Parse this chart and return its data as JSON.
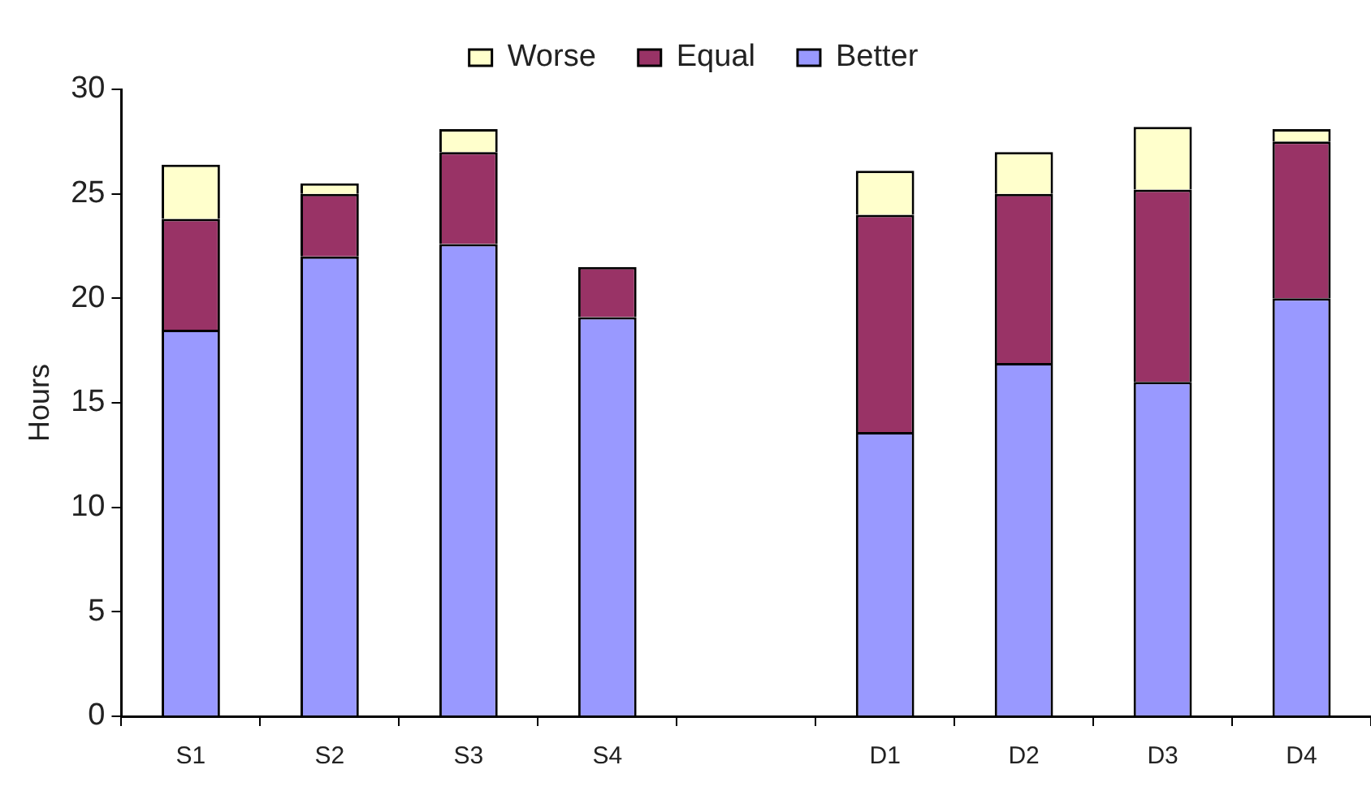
{
  "chart_data": {
    "type": "bar",
    "stacked": true,
    "ylabel": "Hours",
    "categories": [
      "S1",
      "S2",
      "S3",
      "S4",
      null,
      "D1",
      "D2",
      "D3",
      "D4"
    ],
    "series": [
      {
        "name": "Better",
        "color": "#9999ff",
        "values": [
          18.5,
          22.0,
          22.6,
          19.1,
          null,
          13.6,
          16.9,
          16.0,
          20.0
        ]
      },
      {
        "name": "Equal",
        "color": "#993366",
        "values": [
          5.3,
          3.0,
          4.4,
          2.4,
          null,
          10.4,
          8.1,
          9.2,
          7.5
        ]
      },
      {
        "name": "Worse",
        "color": "#ffffcc",
        "values": [
          2.6,
          0.5,
          1.1,
          0,
          null,
          2.1,
          2.0,
          3.0,
          0.6
        ]
      }
    ],
    "ylim": [
      0,
      30
    ],
    "yticks": [
      0,
      5,
      10,
      15,
      20,
      25,
      30
    ],
    "grid": false,
    "legend": "top"
  }
}
